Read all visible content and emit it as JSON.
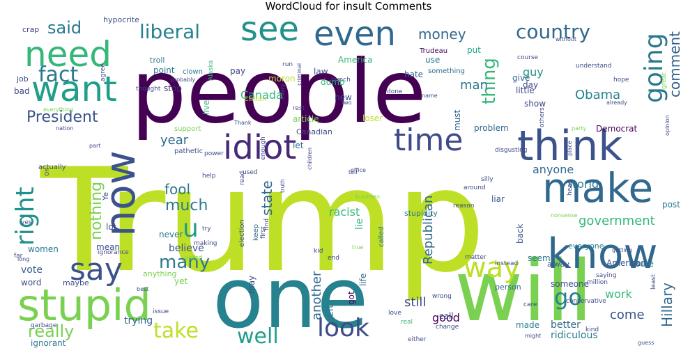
{
  "chart_data": {
    "type": "wordcloud",
    "title": "WordCloud for insult Comments",
    "words": [
      {
        "text": "Trump",
        "size": 205,
        "color": "#bddf26"
      },
      {
        "text": "people",
        "size": 125,
        "color": "#440154"
      },
      {
        "text": "one",
        "size": 120,
        "color": "#26828e"
      },
      {
        "text": "will",
        "size": 120,
        "color": "#7ad151"
      },
      {
        "text": "stupid",
        "size": 62,
        "color": "#7ad151"
      },
      {
        "text": "know",
        "size": 60,
        "color": "#31688e"
      },
      {
        "text": "think",
        "size": 60,
        "color": "#3b528b"
      },
      {
        "text": "make",
        "size": 58,
        "color": "#31688e"
      },
      {
        "text": "now",
        "size": 60,
        "color": "#3b528b"
      },
      {
        "text": "need",
        "size": 50,
        "color": "#35b779"
      },
      {
        "text": "want",
        "size": 50,
        "color": "#1f9e89"
      },
      {
        "text": "even",
        "size": 48,
        "color": "#31688e"
      },
      {
        "text": "see",
        "size": 48,
        "color": "#21918c"
      },
      {
        "text": "idiot",
        "size": 48,
        "color": "#482878"
      },
      {
        "text": "time",
        "size": 44,
        "color": "#3e4a89"
      },
      {
        "text": "say",
        "size": 44,
        "color": "#3b528b"
      },
      {
        "text": "way",
        "size": 40,
        "color": "#bddf26"
      },
      {
        "text": "look",
        "size": 36,
        "color": "#3e4a89"
      },
      {
        "text": "going",
        "size": 36,
        "color": "#2a788e"
      },
      {
        "text": "right",
        "size": 36,
        "color": "#21918c"
      },
      {
        "text": "u",
        "size": 36,
        "color": "#1f9e89"
      },
      {
        "text": "take",
        "size": 30,
        "color": "#bddf26"
      },
      {
        "text": "go",
        "size": 32,
        "color": "#26828e"
      },
      {
        "text": "well",
        "size": 30,
        "color": "#1f9e89"
      },
      {
        "text": "fact",
        "size": 30,
        "color": "#2a788e"
      },
      {
        "text": "liberal",
        "size": 28,
        "color": "#26828e"
      },
      {
        "text": "country",
        "size": 28,
        "color": "#31688e"
      },
      {
        "text": "thing",
        "size": 26,
        "color": "#35b779"
      },
      {
        "text": "said",
        "size": 24,
        "color": "#2a788e"
      },
      {
        "text": "President",
        "size": 22,
        "color": "#3b528b"
      },
      {
        "text": "many",
        "size": 26,
        "color": "#2a788e"
      },
      {
        "text": "really",
        "size": 24,
        "color": "#7ad151"
      },
      {
        "text": "much",
        "size": 22,
        "color": "#2a788e"
      },
      {
        "text": "fool",
        "size": 20,
        "color": "#2a788e"
      },
      {
        "text": "money",
        "size": 20,
        "color": "#31688e"
      },
      {
        "text": "comment",
        "size": 20,
        "color": "#355f8d"
      },
      {
        "text": "Obama",
        "size": 18,
        "color": "#26828e"
      },
      {
        "text": "state",
        "size": 20,
        "color": "#31688e"
      },
      {
        "text": "Hillary",
        "size": 20,
        "color": "#31688e"
      },
      {
        "text": "government",
        "size": 18,
        "color": "#35b779"
      },
      {
        "text": "year",
        "size": 18,
        "color": "#31688e"
      },
      {
        "text": "anyone",
        "size": 16,
        "color": "#31688e"
      },
      {
        "text": "world",
        "size": 16,
        "color": "#2a788e"
      },
      {
        "text": "nothing",
        "size": 22,
        "color": "#7ad151"
      },
      {
        "text": "Canada",
        "size": 16,
        "color": "#35b779"
      },
      {
        "text": "man",
        "size": 18,
        "color": "#2a788e"
      },
      {
        "text": "another",
        "size": 18,
        "color": "#31688e"
      },
      {
        "text": "still",
        "size": 18,
        "color": "#3e4a89"
      },
      {
        "text": "good",
        "size": 16,
        "color": "#440154"
      },
      {
        "text": "come",
        "size": 18,
        "color": "#3b528b"
      },
      {
        "text": "work",
        "size": 16,
        "color": "#35b779"
      },
      {
        "text": "guy",
        "size": 16,
        "color": "#21918c"
      },
      {
        "text": "Republican",
        "size": 18,
        "color": "#31688e"
      },
      {
        "text": "believe",
        "size": 14,
        "color": "#3b528b"
      },
      {
        "text": "vote",
        "size": 14,
        "color": "#355f8d"
      },
      {
        "text": "racist",
        "size": 16,
        "color": "#35b779"
      },
      {
        "text": "lie",
        "size": 14,
        "color": "#35b779"
      },
      {
        "text": "better",
        "size": 14,
        "color": "#31688e"
      },
      {
        "text": "left",
        "size": 14,
        "color": "#2a788e"
      },
      {
        "text": "ridiculous",
        "size": 14,
        "color": "#2a788e"
      },
      {
        "text": "trying",
        "size": 14,
        "color": "#31688e"
      },
      {
        "text": "ignorant",
        "size": 12,
        "color": "#2a788e"
      },
      {
        "text": "hypocrite",
        "size": 11,
        "color": "#3b528b"
      },
      {
        "text": "crap",
        "size": 11,
        "color": "#414487"
      },
      {
        "text": "job",
        "size": 11,
        "color": "#414487"
      },
      {
        "text": "bad",
        "size": 12,
        "color": "#3e4a89"
      },
      {
        "text": "troll",
        "size": 11,
        "color": "#2a788e"
      },
      {
        "text": "clown",
        "size": 10,
        "color": "#2a788e"
      },
      {
        "text": "point",
        "size": 12,
        "color": "#2a788e"
      },
      {
        "text": "stop",
        "size": 12,
        "color": "#482878"
      },
      {
        "text": "pay",
        "size": 12,
        "color": "#414487"
      },
      {
        "text": "moron",
        "size": 12,
        "color": "#bddf26"
      },
      {
        "text": "use",
        "size": 12,
        "color": "#2a788e"
      },
      {
        "text": "America",
        "size": 12,
        "color": "#35b779"
      },
      {
        "text": "Trudeau",
        "size": 10,
        "color": "#440154"
      },
      {
        "text": "put",
        "size": 12,
        "color": "#1f9e89"
      },
      {
        "text": "law",
        "size": 12,
        "color": "#414487"
      },
      {
        "text": "dumb",
        "size": 12,
        "color": "#35b779"
      },
      {
        "text": "new",
        "size": 12,
        "color": "#3e4a89"
      },
      {
        "text": "hate",
        "size": 12,
        "color": "#355f8d"
      },
      {
        "text": "day",
        "size": 12,
        "color": "#3e4a89"
      },
      {
        "text": "give",
        "size": 12,
        "color": "#31688e"
      },
      {
        "text": "little",
        "size": 12,
        "color": "#3e4a89"
      },
      {
        "text": "show",
        "size": 12,
        "color": "#3e4a89"
      },
      {
        "text": "live",
        "size": 12,
        "color": "#35b779"
      },
      {
        "text": "support",
        "size": 10,
        "color": "#7ad151"
      },
      {
        "text": "article",
        "size": 12,
        "color": "#7ad151"
      },
      {
        "text": "let",
        "size": 12,
        "color": "#31688e"
      },
      {
        "text": "Democrat",
        "size": 12,
        "color": "#440154"
      },
      {
        "text": "problem",
        "size": 12,
        "color": "#31688e"
      },
      {
        "text": "Canadian",
        "size": 11,
        "color": "#3e4a89"
      },
      {
        "text": "loser",
        "size": 12,
        "color": "#bddf26"
      },
      {
        "text": "must",
        "size": 12,
        "color": "#31688e"
      },
      {
        "text": "pathetic",
        "size": 10,
        "color": "#3b528b"
      },
      {
        "text": "election",
        "size": 10,
        "color": "#3b528b"
      },
      {
        "text": "keep",
        "size": 10,
        "color": "#31688e"
      },
      {
        "text": "called",
        "size": 10,
        "color": "#31688e"
      },
      {
        "text": "stupidity",
        "size": 11,
        "color": "#2a788e"
      },
      {
        "text": "back",
        "size": 12,
        "color": "#3b528b"
      },
      {
        "text": "everyone",
        "size": 11,
        "color": "#26828e"
      },
      {
        "text": "seem",
        "size": 12,
        "color": "#2a788e"
      },
      {
        "text": "liar",
        "size": 12,
        "color": "#3b528b"
      },
      {
        "text": "post",
        "size": 12,
        "color": "#2a788e"
      },
      {
        "text": "lot",
        "size": 12,
        "color": "#3e4a89"
      },
      {
        "text": "mean",
        "size": 12,
        "color": "#3b528b"
      },
      {
        "text": "women",
        "size": 12,
        "color": "#2a788e"
      },
      {
        "text": "word",
        "size": 12,
        "color": "#3b528b"
      },
      {
        "text": "maybe",
        "size": 11,
        "color": "#3e4a89"
      },
      {
        "text": "anything",
        "size": 11,
        "color": "#7ad151"
      },
      {
        "text": "never",
        "size": 12,
        "color": "#2a788e"
      },
      {
        "text": "yet",
        "size": 12,
        "color": "#7ad151"
      },
      {
        "text": "alway",
        "size": 11,
        "color": "#3b528b"
      },
      {
        "text": "American",
        "size": 12,
        "color": "#3b528b"
      },
      {
        "text": "sure",
        "size": 12,
        "color": "#2a788e"
      },
      {
        "text": "someone",
        "size": 12,
        "color": "#3e4a89"
      },
      {
        "text": "person",
        "size": 11,
        "color": "#31688e"
      },
      {
        "text": "call",
        "size": 12,
        "color": "#3e4a89"
      },
      {
        "text": "made",
        "size": 12,
        "color": "#26828e"
      },
      {
        "text": "may",
        "size": 12,
        "color": "#3b528b"
      },
      {
        "text": "life",
        "size": 12,
        "color": "#31688e"
      },
      {
        "text": "got",
        "size": 12,
        "color": "#440154"
      },
      {
        "text": "actually",
        "size": 10,
        "color": "#3e4a89"
      },
      {
        "text": "Ye",
        "size": 11,
        "color": "#3e4a89"
      },
      {
        "text": "ignorance",
        "size": 9,
        "color": "#3e4a89"
      },
      {
        "text": "far",
        "size": 9,
        "color": "#414487"
      },
      {
        "text": "yes",
        "size": 9,
        "color": "#3e4a89"
      },
      {
        "text": "long",
        "size": 8,
        "color": "#3e4a89"
      },
      {
        "text": "best",
        "size": 8,
        "color": "#3e4a89"
      },
      {
        "text": "issue",
        "size": 9,
        "color": "#3e4a89"
      },
      {
        "text": "garbage",
        "size": 9,
        "color": "#3e4a89"
      },
      {
        "text": "either",
        "size": 9,
        "color": "#3e4a89"
      },
      {
        "text": "change",
        "size": 9,
        "color": "#3e4a89"
      },
      {
        "text": "real",
        "size": 9,
        "color": "#35b779"
      },
      {
        "text": "love",
        "size": 9,
        "color": "#3e4a89"
      },
      {
        "text": "kid",
        "size": 9,
        "color": "#3e4a89"
      },
      {
        "text": "end",
        "size": 9,
        "color": "#3e4a89"
      },
      {
        "text": "matter",
        "size": 9,
        "color": "#3e4a89"
      },
      {
        "text": "instead",
        "size": 9,
        "color": "#3e4a89"
      },
      {
        "text": "silly",
        "size": 9,
        "color": "#3e4a89"
      },
      {
        "text": "around",
        "size": 9,
        "color": "#3e4a89"
      },
      {
        "text": "try",
        "size": 9,
        "color": "#3e4a89"
      },
      {
        "text": "making",
        "size": 9,
        "color": "#3e4a89"
      },
      {
        "text": "voted",
        "size": 9,
        "color": "#7ad151"
      },
      {
        "text": "children",
        "size": 8,
        "color": "#3e4a89"
      },
      {
        "text": "enough",
        "size": 9,
        "color": "#3e4a89"
      },
      {
        "text": "read",
        "size": 9,
        "color": "#3e4a89"
      },
      {
        "text": "used",
        "size": 9,
        "color": "#3e4a89"
      },
      {
        "text": "first",
        "size": 9,
        "color": "#3e4a89"
      },
      {
        "text": "find",
        "size": 9,
        "color": "#3e4a89"
      },
      {
        "text": "truth",
        "size": 8,
        "color": "#3e4a89"
      },
      {
        "text": "office",
        "size": 8,
        "color": "#3e4a89"
      },
      {
        "text": "run",
        "size": 9,
        "color": "#3e4a89"
      },
      {
        "text": "criminal",
        "size": 8,
        "color": "#3e4a89"
      },
      {
        "text": "Clinton",
        "size": 9,
        "color": "#bddf26"
      },
      {
        "text": "Alaska",
        "size": 9,
        "color": "#35b779"
      },
      {
        "text": "probably",
        "size": 8,
        "color": "#3e4a89"
      },
      {
        "text": "thought",
        "size": 9,
        "color": "#3e4a89"
      },
      {
        "text": "agree",
        "size": 9,
        "color": "#3e4a89"
      },
      {
        "text": "everything",
        "size": 8,
        "color": "#7ad151"
      },
      {
        "text": "nation",
        "size": 8,
        "color": "#3e4a89"
      },
      {
        "text": "part",
        "size": 8,
        "color": "#3e4a89"
      },
      {
        "text": "power",
        "size": 9,
        "color": "#3e4a89"
      },
      {
        "text": "help",
        "size": 9,
        "color": "#3e4a89"
      },
      {
        "text": "Thank",
        "size": 8,
        "color": "#3e4a89"
      },
      {
        "text": "every",
        "size": 8,
        "color": "#3e4a89"
      },
      {
        "text": "two",
        "size": 8,
        "color": "#3e4a89"
      },
      {
        "text": "rest",
        "size": 9,
        "color": "#3e4a89"
      },
      {
        "text": "bunch",
        "size": 9,
        "color": "#3e4a89"
      },
      {
        "text": "done",
        "size": 9,
        "color": "#3e4a89"
      },
      {
        "text": "something",
        "size": 10,
        "color": "#31688e"
      },
      {
        "text": "course",
        "size": 9,
        "color": "#3e4a89"
      },
      {
        "text": "without",
        "size": 8,
        "color": "#3e4a89"
      },
      {
        "text": "understand",
        "size": 9,
        "color": "#3e4a89"
      },
      {
        "text": "hope",
        "size": 9,
        "color": "#3e4a89"
      },
      {
        "text": "great",
        "size": 9,
        "color": "#7ad151"
      },
      {
        "text": "already",
        "size": 8,
        "color": "#3e4a89"
      },
      {
        "text": "name",
        "size": 8,
        "color": "#3e4a89"
      },
      {
        "text": "opinion",
        "size": 8,
        "color": "#3e4a89"
      },
      {
        "text": "party",
        "size": 8,
        "color": "#7ad151"
      },
      {
        "text": "others",
        "size": 9,
        "color": "#3e4a89"
      },
      {
        "text": "disgusting",
        "size": 9,
        "color": "#3e4a89"
      },
      {
        "text": "place",
        "size": 8,
        "color": "#3e4a89"
      },
      {
        "text": "head",
        "size": 9,
        "color": "#3e4a89"
      },
      {
        "text": "nonsense",
        "size": 8,
        "color": "#7ad151"
      },
      {
        "text": "getting",
        "size": 8,
        "color": "#3e4a89"
      },
      {
        "text": "saying",
        "size": 9,
        "color": "#3e4a89"
      },
      {
        "text": "million",
        "size": 9,
        "color": "#3e4a89"
      },
      {
        "text": "least",
        "size": 9,
        "color": "#3e4a89"
      },
      {
        "text": "conservative",
        "size": 9,
        "color": "#3e4a89"
      },
      {
        "text": "care",
        "size": 9,
        "color": "#3e4a89"
      },
      {
        "text": "kind",
        "size": 9,
        "color": "#3e4a89"
      },
      {
        "text": "wrong",
        "size": 9,
        "color": "#3e4a89"
      },
      {
        "text": "might",
        "size": 8,
        "color": "#3e4a89"
      },
      {
        "text": "guess",
        "size": 8,
        "color": "#3e4a89"
      },
      {
        "text": "reason",
        "size": 9,
        "color": "#3e4a89"
      },
      {
        "text": "business",
        "size": 8,
        "color": "#7ad151"
      },
      {
        "text": "true",
        "size": 8,
        "color": "#7ad151"
      },
      {
        "text": "Oh",
        "size": 8,
        "color": "#3e4a89"
      },
      {
        "text": "tell",
        "size": 8,
        "color": "#3e4a89"
      }
    ]
  }
}
